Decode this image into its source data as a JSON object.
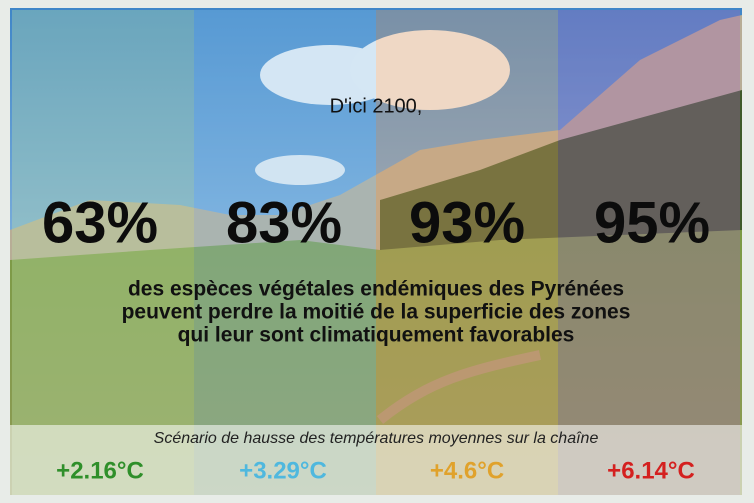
{
  "header": {
    "title": "D'ici 2100,"
  },
  "columns": [
    {
      "percent": "63%",
      "temperature": "+2.16°C",
      "color": "#2f8f2a"
    },
    {
      "percent": "83%",
      "temperature": "+3.29°C",
      "color": "#4fb8de"
    },
    {
      "percent": "93%",
      "temperature": "+4.6°C",
      "color": "#e0a22c"
    },
    {
      "percent": "95%",
      "temperature": "+6.14°C",
      "color": "#d4201f"
    }
  ],
  "caption": {
    "lines": [
      "des espèces végétales endémiques des Pyrénées",
      "peuvent perdre la moitié de la superficie des zones",
      "qui leur sont climatiquement favorables"
    ]
  },
  "footer": {
    "scenario": "Scénario de hausse des températures moyennes sur la chaîne"
  }
}
